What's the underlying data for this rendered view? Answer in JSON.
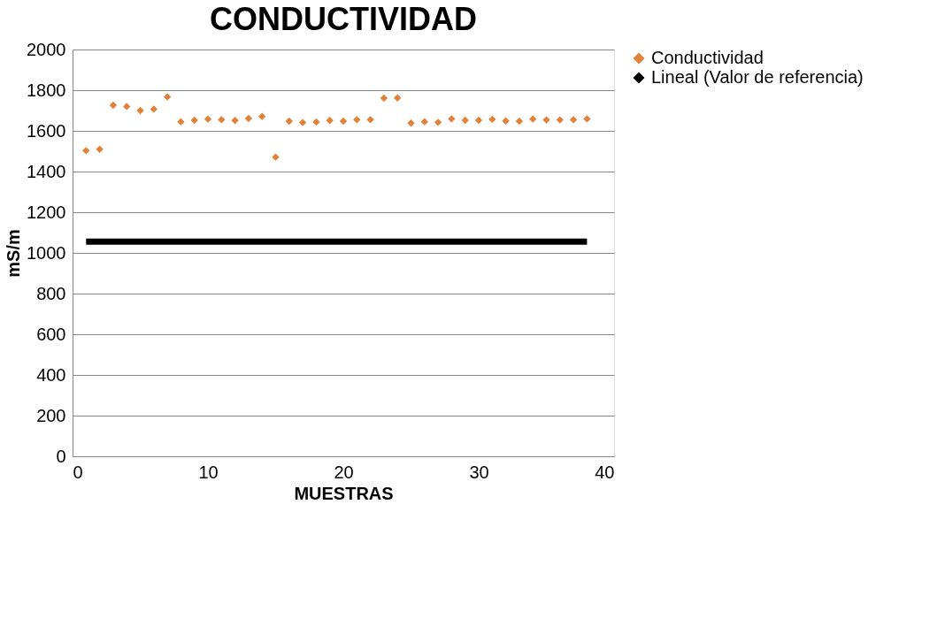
{
  "chart_data": {
    "type": "scatter",
    "title": "CONDUCTIVIDAD",
    "xlabel": "MUESTRAS",
    "ylabel": "mS/m",
    "x": [
      1,
      2,
      3,
      4,
      5,
      6,
      7,
      8,
      9,
      10,
      11,
      12,
      13,
      14,
      15,
      16,
      17,
      18,
      19,
      20,
      21,
      22,
      23,
      24,
      25,
      26,
      27,
      28,
      29,
      30,
      31,
      32,
      33,
      34,
      35,
      36,
      37,
      38
    ],
    "series": [
      {
        "name": "Conductividad",
        "color": "#e0823a",
        "marker": "diamond",
        "values": [
          1503,
          1510,
          1726,
          1720,
          1700,
          1707,
          1767,
          1645,
          1652,
          1658,
          1655,
          1651,
          1661,
          1671,
          1471,
          1648,
          1641,
          1644,
          1651,
          1648,
          1655,
          1655,
          1761,
          1762,
          1638,
          1645,
          1642,
          1659,
          1652,
          1652,
          1657,
          1649,
          1648,
          1658,
          1654,
          1654,
          1655,
          1659
        ]
      },
      {
        "name": "Lineal (Valor de referencia)",
        "color": "#000000",
        "type": "line",
        "x": [
          1,
          38
        ],
        "values": [
          1055,
          1055
        ]
      }
    ],
    "xlim": [
      0,
      40
    ],
    "xticks": [
      0,
      10,
      20,
      30,
      40
    ],
    "ylim": [
      0,
      2000
    ],
    "yticks": [
      0,
      200,
      400,
      600,
      800,
      1000,
      1200,
      1400,
      1600,
      1800,
      2000
    ],
    "grid": "y",
    "legend": "right"
  }
}
